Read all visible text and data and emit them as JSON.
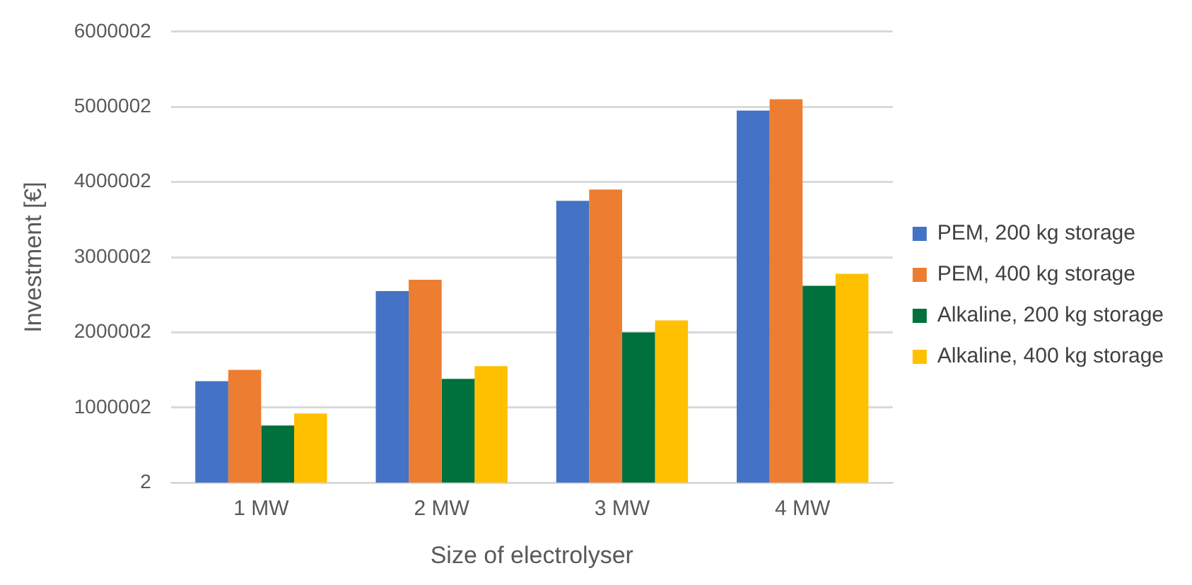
{
  "chart_data": {
    "type": "bar",
    "xlabel": "Size of electrolyser",
    "ylabel": "Investment [€]",
    "categories": [
      "1 MW",
      "2 MW",
      "3 MW",
      "4 MW"
    ],
    "series": [
      {
        "name": "PEM, 200 kg storage",
        "color": "#4472c4",
        "values": [
          1350000,
          2550000,
          3750000,
          4950000
        ]
      },
      {
        "name": "PEM, 400 kg storage",
        "color": "#ed7d31",
        "values": [
          1500000,
          2700000,
          3900000,
          5100000
        ]
      },
      {
        "name": "Alkaline, 200 kg storage",
        "color": "#00703c",
        "values": [
          760000,
          1380000,
          2000000,
          2620000
        ]
      },
      {
        "name": "Alkaline, 400 kg storage",
        "color": "#ffc000",
        "values": [
          920000,
          1550000,
          2160000,
          2780000
        ]
      }
    ],
    "ylim": [
      2,
      6000002
    ],
    "yticks": [
      2,
      1000002,
      2000002,
      3000002,
      4000002,
      5000002,
      6000002
    ],
    "grid": "y",
    "legend": "right"
  }
}
